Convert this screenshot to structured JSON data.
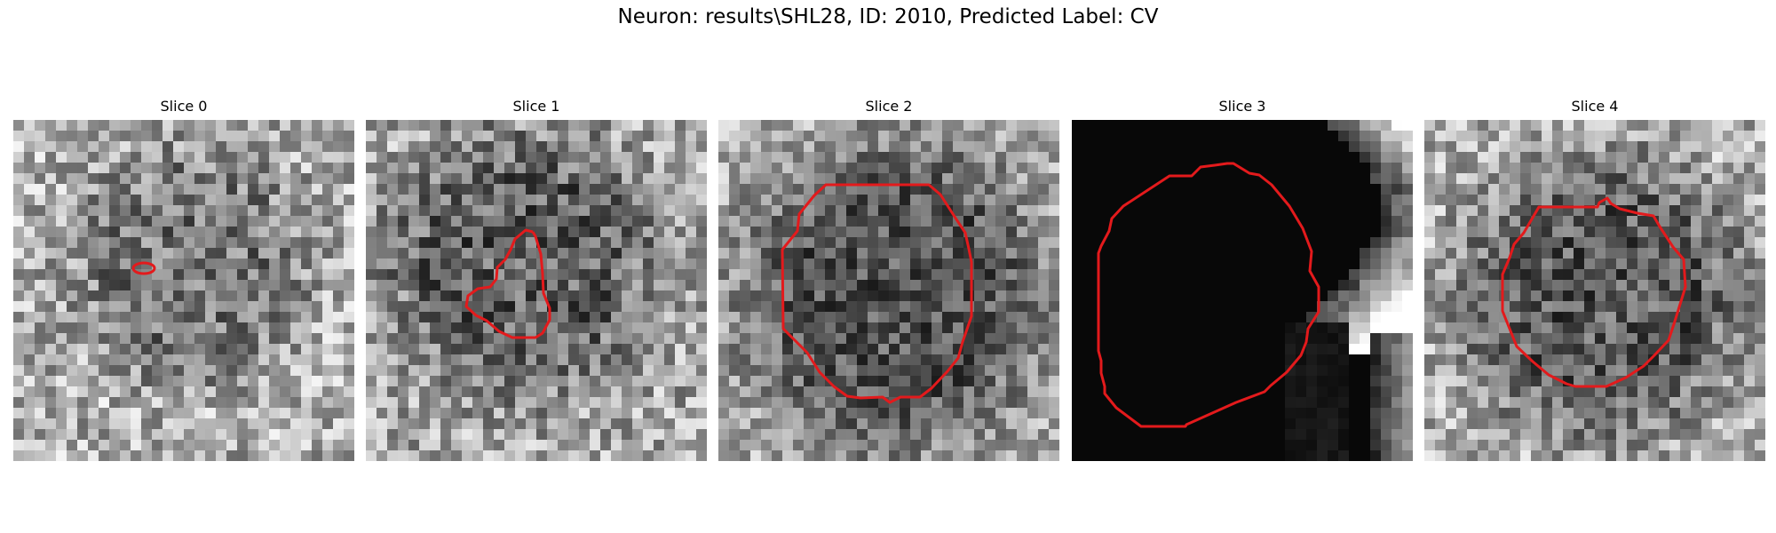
{
  "figure": {
    "title": "Neuron: results\\SHL28, ID: 2010, Predicted Label: CV"
  },
  "contour_color": "#e31a1c",
  "slices": [
    {
      "title": "Slice 0",
      "shading": "noise"
    },
    {
      "title": "Slice 1",
      "shading": "noise"
    },
    {
      "title": "Slice 2",
      "shading": "noise"
    },
    {
      "title": "Slice 3",
      "shading": "dark"
    },
    {
      "title": "Slice 4",
      "shading": "noise"
    }
  ]
}
